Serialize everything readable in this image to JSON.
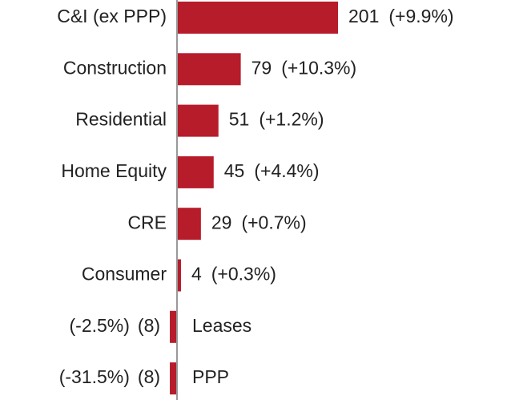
{
  "chart_data": {
    "type": "bar",
    "orientation": "horizontal",
    "categories": [
      "C&I (ex PPP)",
      "Construction",
      "Residential",
      "Home Equity",
      "CRE",
      "Consumer",
      "Leases",
      "PPP"
    ],
    "values": [
      201,
      79,
      51,
      45,
      29,
      4,
      -8,
      -8
    ],
    "value_labels": [
      "201",
      "79",
      "51",
      "45",
      "29",
      "4",
      "(8)",
      "(8)"
    ],
    "change_labels": [
      "(+9.9%)",
      "(+10.3%)",
      "(+1.2%)",
      "(+4.4%)",
      "(+0.7%)",
      "(+0.3%)",
      "(-2.5%)",
      "(-31.5%)"
    ],
    "color": "#b71c2b",
    "negative_label_color": "#e8141b"
  }
}
